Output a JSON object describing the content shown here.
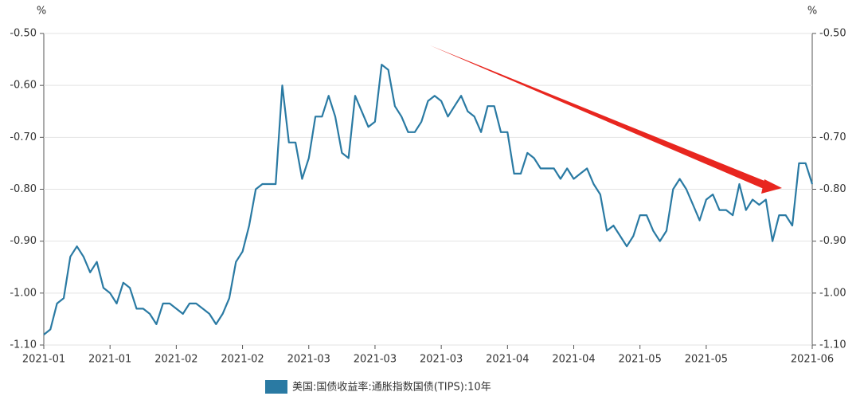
{
  "chart_data": {
    "type": "line",
    "y_label": "%",
    "y2_label": "%",
    "categories": [
      "2021-01",
      null,
      null,
      null,
      null,
      null,
      null,
      null,
      null,
      null,
      "2021-01",
      null,
      null,
      null,
      null,
      null,
      null,
      null,
      null,
      null,
      "2021-02",
      null,
      null,
      null,
      null,
      null,
      null,
      null,
      null,
      null,
      "2021-02",
      null,
      null,
      null,
      null,
      null,
      null,
      null,
      null,
      null,
      "2021-03",
      null,
      null,
      null,
      null,
      null,
      null,
      null,
      null,
      null,
      "2021-03",
      null,
      null,
      null,
      null,
      null,
      null,
      null,
      null,
      null,
      "2021-03",
      null,
      null,
      null,
      null,
      null,
      null,
      null,
      null,
      null,
      "2021-04",
      null,
      null,
      null,
      null,
      null,
      null,
      null,
      null,
      null,
      "2021-04",
      null,
      null,
      null,
      null,
      null,
      null,
      null,
      null,
      null,
      "2021-05",
      null,
      null,
      null,
      null,
      null,
      null,
      null,
      null,
      null,
      "2021-05",
      null,
      null,
      null,
      null,
      null,
      null,
      null,
      null,
      null,
      null,
      null,
      null,
      null,
      null,
      null,
      "2021-06"
    ],
    "series": [
      {
        "name": "美国:国债收益率:通胀指数国债(TIPS):10年",
        "color": "#2a7aa3",
        "values": [
          -1.08,
          -1.07,
          -1.02,
          -1.01,
          -0.93,
          -0.91,
          -0.93,
          -0.96,
          -0.94,
          -0.99,
          -1.0,
          -1.02,
          -0.98,
          -0.99,
          -1.03,
          -1.03,
          -1.04,
          -1.06,
          -1.02,
          -1.02,
          -1.03,
          -1.04,
          -1.02,
          -1.02,
          -1.03,
          -1.04,
          -1.06,
          -1.04,
          -1.01,
          -0.94,
          -0.92,
          -0.87,
          -0.8,
          -0.79,
          -0.79,
          -0.79,
          -0.6,
          -0.71,
          -0.71,
          -0.78,
          -0.74,
          -0.66,
          -0.66,
          -0.62,
          -0.66,
          -0.73,
          -0.74,
          -0.62,
          -0.65,
          -0.68,
          -0.67,
          -0.56,
          -0.57,
          -0.64,
          -0.66,
          -0.69,
          -0.69,
          -0.67,
          -0.63,
          -0.62,
          -0.63,
          -0.66,
          -0.64,
          -0.62,
          -0.65,
          -0.66,
          -0.69,
          -0.64,
          -0.64,
          -0.69,
          -0.69,
          -0.77,
          -0.77,
          -0.73,
          -0.74,
          -0.76,
          -0.76,
          -0.76,
          -0.78,
          -0.76,
          -0.78,
          -0.77,
          -0.76,
          -0.79,
          -0.81,
          -0.88,
          -0.87,
          -0.89,
          -0.91,
          -0.89,
          -0.85,
          -0.85,
          -0.88,
          -0.9,
          -0.88,
          -0.8,
          -0.78,
          -0.8,
          -0.83,
          -0.86,
          -0.82,
          -0.81,
          -0.84,
          -0.84,
          -0.85,
          -0.79,
          -0.84,
          -0.82,
          -0.83,
          -0.82,
          -0.9,
          -0.85,
          -0.85,
          -0.87,
          -0.75,
          -0.75,
          -0.79
        ]
      }
    ],
    "ylim": [
      -1.1,
      -0.5
    ],
    "yticks": [
      {
        "value": -0.5,
        "label": "-0.50"
      },
      {
        "value": -0.6,
        "label": "-0.60"
      },
      {
        "value": -0.7,
        "label": "-0.70"
      },
      {
        "value": -0.8,
        "label": "-0.80"
      },
      {
        "value": -0.9,
        "label": "-0.90"
      },
      {
        "value": -1.0,
        "label": "-1.00"
      },
      {
        "value": -1.1,
        "label": "-1.10"
      }
    ],
    "y2lim": [
      -1.1,
      -0.5
    ],
    "y2ticks": [
      {
        "value": -0.5,
        "label": "-0.50"
      },
      {
        "value": -0.7,
        "label": "-0.70"
      },
      {
        "value": -0.8,
        "label": "-0.80"
      },
      {
        "value": -0.9,
        "label": "-0.90"
      },
      {
        "value": -1.0,
        "label": "-1.00"
      },
      {
        "value": -1.1,
        "label": "-1.10"
      }
    ],
    "grid": true,
    "legend": "bottom"
  }
}
